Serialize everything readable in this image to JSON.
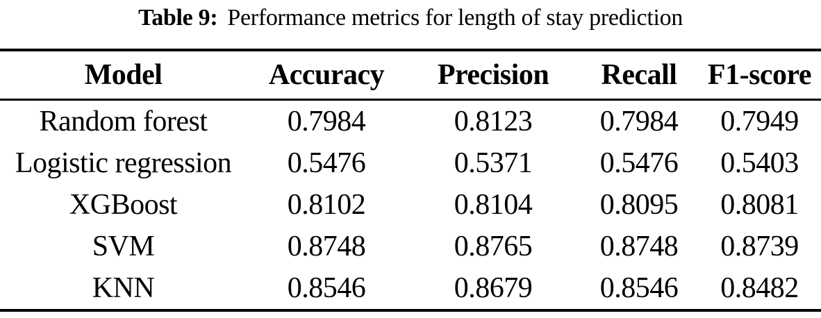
{
  "caption": {
    "label": "Table 9:",
    "text": "Performance metrics for length of stay prediction"
  },
  "table": {
    "headers": [
      "Model",
      "Accuracy",
      "Precision",
      "Recall",
      "F1-score"
    ],
    "rows": [
      {
        "model": "Random forest",
        "accuracy": "0.7984",
        "precision": "0.8123",
        "recall": "0.7984",
        "f1": "0.7949"
      },
      {
        "model": "Logistic regression",
        "accuracy": "0.5476",
        "precision": "0.5371",
        "recall": "0.5476",
        "f1": "0.5403"
      },
      {
        "model": "XGBoost",
        "accuracy": "0.8102",
        "precision": "0.8104",
        "recall": "0.8095",
        "f1": "0.8081"
      },
      {
        "model": "SVM",
        "accuracy": "0.8748",
        "precision": "0.8765",
        "recall": "0.8748",
        "f1": "0.8739"
      },
      {
        "model": "KNN",
        "accuracy": "0.8546",
        "precision": "0.8679",
        "recall": "0.8546",
        "f1": "0.8482"
      }
    ]
  },
  "colors": {
    "text": "#000000",
    "rule": "#000000",
    "background": "#ffffff"
  },
  "chart_data": {
    "type": "table",
    "title": "Table 9: Performance metrics for length of stay prediction",
    "columns": [
      "Model",
      "Accuracy",
      "Precision",
      "Recall",
      "F1-score"
    ],
    "rows": [
      [
        "Random forest",
        0.7984,
        0.8123,
        0.7984,
        0.7949
      ],
      [
        "Logistic regression",
        0.5476,
        0.5371,
        0.5476,
        0.5403
      ],
      [
        "XGBoost",
        0.8102,
        0.8104,
        0.8095,
        0.8081
      ],
      [
        "SVM",
        0.8748,
        0.8765,
        0.8748,
        0.8739
      ],
      [
        "KNN",
        0.8546,
        0.8679,
        0.8546,
        0.8482
      ]
    ]
  }
}
